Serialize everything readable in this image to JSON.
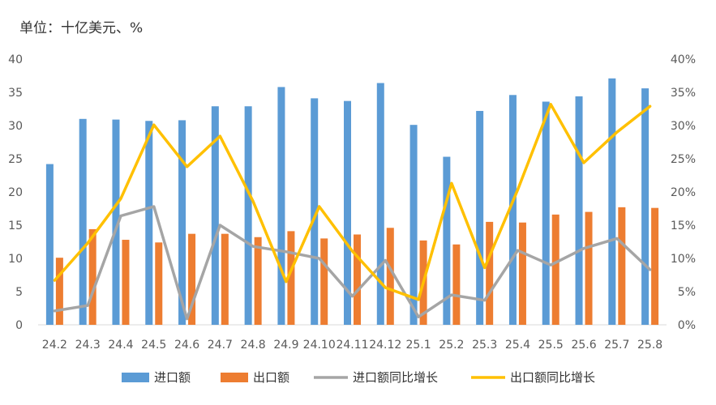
{
  "unit_label": "单位：十亿美元、%",
  "colors": {
    "import_bar": "#5B9BD5",
    "export_bar": "#ED7D31",
    "import_yoy": "#A5A5A5",
    "export_yoy": "#FFC000"
  },
  "chart_data": {
    "type": "bar",
    "categories": [
      "24.2",
      "24.3",
      "24.4",
      "24.5",
      "24.6",
      "24.7",
      "24.8",
      "24.9",
      "24.10",
      "24.11",
      "24.12",
      "25.1",
      "25.2",
      "25.3",
      "25.4",
      "25.5",
      "25.6",
      "25.7",
      "25.8"
    ],
    "series": [
      {
        "name": "进口额",
        "type": "bar",
        "axis": "left",
        "values": [
          24.2,
          31.0,
          30.9,
          30.7,
          30.8,
          32.9,
          32.9,
          35.8,
          34.1,
          33.7,
          36.4,
          30.1,
          25.3,
          32.2,
          34.6,
          33.6,
          34.4,
          37.1,
          35.6
        ]
      },
      {
        "name": "出口额",
        "type": "bar",
        "axis": "left",
        "values": [
          10.1,
          14.4,
          12.8,
          12.4,
          13.7,
          13.7,
          13.2,
          14.1,
          13.0,
          13.6,
          14.6,
          12.7,
          12.1,
          15.5,
          15.4,
          16.6,
          17.0,
          17.7,
          17.6
        ]
      },
      {
        "name": "进口额同比增长",
        "type": "line",
        "axis": "right",
        "values": [
          2.1,
          2.9,
          16.4,
          17.8,
          0.9,
          15.0,
          11.8,
          11.0,
          10.0,
          4.3,
          9.7,
          1.2,
          4.5,
          3.7,
          11.2,
          9.0,
          11.5,
          13.0,
          8.3
        ]
      },
      {
        "name": "出口额同比增长",
        "type": "line",
        "axis": "right",
        "values": [
          6.7,
          12.3,
          19.0,
          30.1,
          23.8,
          28.4,
          18.6,
          6.5,
          17.8,
          11.1,
          5.6,
          3.8,
          21.3,
          8.6,
          20.3,
          33.2,
          24.4,
          29.0,
          32.9
        ]
      }
    ],
    "y_left": {
      "min": 0,
      "max": 40,
      "ticks": [
        "0",
        "5",
        "10",
        "15",
        "20",
        "25",
        "30",
        "35",
        "40"
      ]
    },
    "y_right": {
      "min": 0,
      "max": 40,
      "ticks": [
        "0%",
        "5%",
        "10%",
        "15%",
        "20%",
        "25%",
        "30%",
        "35%",
        "40%"
      ]
    },
    "grid": false,
    "legend_position": "bottom"
  }
}
